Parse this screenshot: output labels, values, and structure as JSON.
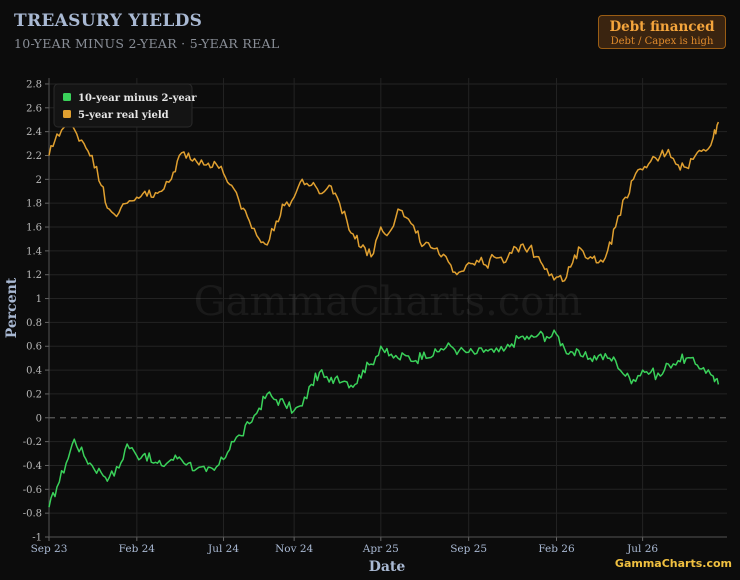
{
  "header": {
    "title": "TREASURY YIELDS",
    "subtitle": "10-YEAR MINUS 2-YEAR · 5-YEAR REAL"
  },
  "badge": {
    "title": "Debt financed",
    "subtitle": "Debt / Capex is high"
  },
  "watermark": "GammaCharts.com",
  "footer_logo": "GammaCharts.com",
  "colors": {
    "background": "#0c0c0c",
    "spread": "#3ad15a",
    "real_yield": "#e0a030",
    "zero_line": "#555555",
    "grid": "#262626"
  },
  "chart_data": {
    "type": "line",
    "xlabel": "Date",
    "ylabel": "Percent",
    "ylim": [
      -1,
      2.85
    ],
    "yticks": [
      -1,
      -0.8,
      -0.6,
      -0.4,
      -0.2,
      0,
      0.2,
      0.4,
      0.6,
      0.8,
      1,
      1.2,
      1.4,
      1.6,
      1.8,
      2,
      2.2,
      2.4,
      2.6,
      2.8
    ],
    "ytick_labels": [
      "-1",
      "-0.8",
      "-0.6",
      "-0.4",
      "-0.2",
      "0",
      "0.2",
      "0.4",
      "0.6",
      "0.8",
      "1",
      "1.2",
      "1.4",
      "1.6",
      "1.8",
      "2",
      "2.2",
      "2.4",
      "2.6",
      "2.8"
    ],
    "xlim": [
      "2023-09-01",
      "2026-11-25"
    ],
    "xticks": [
      {
        "date": "2023-09-01",
        "label": "Sep 23"
      },
      {
        "date": "2024-02-01",
        "label": "Feb 24"
      },
      {
        "date": "2024-07-01",
        "label": "Jul 24"
      },
      {
        "date": "2024-11-01",
        "label": "Nov 24"
      },
      {
        "date": "2025-04-01",
        "label": "Apr 25"
      },
      {
        "date": "2025-09-01",
        "label": "Sep 25"
      },
      {
        "date": "2026-02-01",
        "label": "Feb 26"
      },
      {
        "date": "2026-07-01",
        "label": "Jul 26"
      }
    ],
    "grid": true,
    "legend": "top-left",
    "reference_line": {
      "y": 0,
      "style": "dashed"
    },
    "series": [
      {
        "name": "10-year minus 2-year",
        "color": "#3ad15a",
        "points": [
          [
            "2023-09-01",
            -0.75
          ],
          [
            "2023-09-15",
            -0.58
          ],
          [
            "2023-10-01",
            -0.38
          ],
          [
            "2023-10-15",
            -0.18
          ],
          [
            "2023-11-01",
            -0.32
          ],
          [
            "2023-11-15",
            -0.4
          ],
          [
            "2023-12-01",
            -0.46
          ],
          [
            "2023-12-15",
            -0.5
          ],
          [
            "2024-01-01",
            -0.42
          ],
          [
            "2024-01-15",
            -0.22
          ],
          [
            "2024-02-01",
            -0.32
          ],
          [
            "2024-02-15",
            -0.3
          ],
          [
            "2024-03-01",
            -0.38
          ],
          [
            "2024-03-15",
            -0.4
          ],
          [
            "2024-04-01",
            -0.35
          ],
          [
            "2024-04-15",
            -0.33
          ],
          [
            "2024-05-01",
            -0.38
          ],
          [
            "2024-05-15",
            -0.43
          ],
          [
            "2024-06-01",
            -0.45
          ],
          [
            "2024-06-15",
            -0.44
          ],
          [
            "2024-07-01",
            -0.35
          ],
          [
            "2024-07-15",
            -0.2
          ],
          [
            "2024-08-01",
            -0.15
          ],
          [
            "2024-08-15",
            -0.05
          ],
          [
            "2024-09-01",
            0.08
          ],
          [
            "2024-09-15",
            0.2
          ],
          [
            "2024-10-01",
            0.15
          ],
          [
            "2024-10-15",
            0.12
          ],
          [
            "2024-11-01",
            0.06
          ],
          [
            "2024-11-15",
            0.1
          ],
          [
            "2024-12-01",
            0.28
          ],
          [
            "2024-12-15",
            0.38
          ],
          [
            "2025-01-01",
            0.3
          ],
          [
            "2025-01-15",
            0.35
          ],
          [
            "2025-02-01",
            0.3
          ],
          [
            "2025-02-15",
            0.28
          ],
          [
            "2025-03-01",
            0.4
          ],
          [
            "2025-03-15",
            0.45
          ],
          [
            "2025-04-01",
            0.6
          ],
          [
            "2025-04-15",
            0.52
          ],
          [
            "2025-05-01",
            0.5
          ],
          [
            "2025-05-15",
            0.52
          ],
          [
            "2025-06-01",
            0.48
          ],
          [
            "2025-06-15",
            0.55
          ],
          [
            "2025-07-01",
            0.52
          ],
          [
            "2025-07-15",
            0.58
          ],
          [
            "2025-08-01",
            0.6
          ],
          [
            "2025-08-15",
            0.56
          ],
          [
            "2025-09-01",
            0.55
          ],
          [
            "2025-09-15",
            0.54
          ],
          [
            "2025-10-01",
            0.57
          ],
          [
            "2025-10-15",
            0.55
          ],
          [
            "2025-11-01",
            0.56
          ],
          [
            "2025-11-15",
            0.62
          ],
          [
            "2025-12-01",
            0.68
          ],
          [
            "2025-12-15",
            0.66
          ],
          [
            "2026-01-01",
            0.7
          ],
          [
            "2026-01-15",
            0.68
          ],
          [
            "2026-02-01",
            0.7
          ],
          [
            "2026-02-15",
            0.58
          ],
          [
            "2026-03-01",
            0.55
          ],
          [
            "2026-03-15",
            0.52
          ],
          [
            "2026-04-01",
            0.5
          ],
          [
            "2026-04-15",
            0.52
          ],
          [
            "2026-05-01",
            0.5
          ],
          [
            "2026-05-15",
            0.48
          ],
          [
            "2026-06-01",
            0.35
          ],
          [
            "2026-06-15",
            0.32
          ],
          [
            "2026-07-01",
            0.4
          ],
          [
            "2026-07-15",
            0.38
          ],
          [
            "2026-08-01",
            0.35
          ],
          [
            "2026-08-15",
            0.45
          ],
          [
            "2026-09-01",
            0.48
          ],
          [
            "2026-09-15",
            0.5
          ],
          [
            "2026-10-01",
            0.45
          ],
          [
            "2026-10-15",
            0.42
          ],
          [
            "2026-11-01",
            0.35
          ],
          [
            "2026-11-10",
            0.28
          ]
        ]
      },
      {
        "name": "5-year real yield",
        "color": "#e0a030",
        "points": [
          [
            "2023-09-01",
            2.2
          ],
          [
            "2023-09-15",
            2.38
          ],
          [
            "2023-10-01",
            2.45
          ],
          [
            "2023-10-15",
            2.42
          ],
          [
            "2023-11-01",
            2.3
          ],
          [
            "2023-11-15",
            2.2
          ],
          [
            "2023-12-01",
            1.95
          ],
          [
            "2023-12-15",
            1.75
          ],
          [
            "2024-01-01",
            1.72
          ],
          [
            "2024-01-15",
            1.8
          ],
          [
            "2024-02-01",
            1.85
          ],
          [
            "2024-02-15",
            1.9
          ],
          [
            "2024-03-01",
            1.85
          ],
          [
            "2024-03-15",
            1.9
          ],
          [
            "2024-04-01",
            2.0
          ],
          [
            "2024-04-15",
            2.2
          ],
          [
            "2024-05-01",
            2.22
          ],
          [
            "2024-05-15",
            2.15
          ],
          [
            "2024-06-01",
            2.12
          ],
          [
            "2024-06-15",
            2.15
          ],
          [
            "2024-07-01",
            2.05
          ],
          [
            "2024-07-15",
            1.95
          ],
          [
            "2024-08-01",
            1.75
          ],
          [
            "2024-08-15",
            1.65
          ],
          [
            "2024-09-01",
            1.5
          ],
          [
            "2024-09-15",
            1.45
          ],
          [
            "2024-10-01",
            1.65
          ],
          [
            "2024-10-15",
            1.78
          ],
          [
            "2024-11-01",
            1.85
          ],
          [
            "2024-11-15",
            2.0
          ],
          [
            "2024-12-01",
            1.95
          ],
          [
            "2024-12-15",
            1.88
          ],
          [
            "2025-01-01",
            1.95
          ],
          [
            "2025-01-15",
            1.85
          ],
          [
            "2025-02-01",
            1.65
          ],
          [
            "2025-02-15",
            1.5
          ],
          [
            "2025-03-01",
            1.45
          ],
          [
            "2025-03-15",
            1.35
          ],
          [
            "2025-04-01",
            1.6
          ],
          [
            "2025-04-15",
            1.55
          ],
          [
            "2025-05-01",
            1.75
          ],
          [
            "2025-05-15",
            1.68
          ],
          [
            "2025-06-01",
            1.55
          ],
          [
            "2025-06-15",
            1.45
          ],
          [
            "2025-07-01",
            1.42
          ],
          [
            "2025-07-15",
            1.35
          ],
          [
            "2025-08-01",
            1.28
          ],
          [
            "2025-08-15",
            1.22
          ],
          [
            "2025-09-01",
            1.3
          ],
          [
            "2025-09-15",
            1.32
          ],
          [
            "2025-10-01",
            1.28
          ],
          [
            "2025-10-15",
            1.35
          ],
          [
            "2025-11-01",
            1.3
          ],
          [
            "2025-11-15",
            1.38
          ],
          [
            "2025-12-01",
            1.45
          ],
          [
            "2025-12-15",
            1.42
          ],
          [
            "2026-01-01",
            1.35
          ],
          [
            "2026-01-15",
            1.25
          ],
          [
            "2026-02-01",
            1.18
          ],
          [
            "2026-02-15",
            1.15
          ],
          [
            "2026-03-01",
            1.3
          ],
          [
            "2026-03-15",
            1.42
          ],
          [
            "2026-04-01",
            1.35
          ],
          [
            "2026-04-15",
            1.3
          ],
          [
            "2026-05-01",
            1.4
          ],
          [
            "2026-05-15",
            1.6
          ],
          [
            "2026-06-01",
            1.85
          ],
          [
            "2026-06-15",
            2.0
          ],
          [
            "2026-07-01",
            2.08
          ],
          [
            "2026-07-15",
            2.15
          ],
          [
            "2026-08-01",
            2.2
          ],
          [
            "2026-08-15",
            2.25
          ],
          [
            "2026-09-01",
            2.12
          ],
          [
            "2026-09-15",
            2.1
          ],
          [
            "2026-10-01",
            2.2
          ],
          [
            "2026-10-15",
            2.25
          ],
          [
            "2026-11-01",
            2.35
          ],
          [
            "2026-11-10",
            2.48
          ]
        ]
      }
    ]
  }
}
